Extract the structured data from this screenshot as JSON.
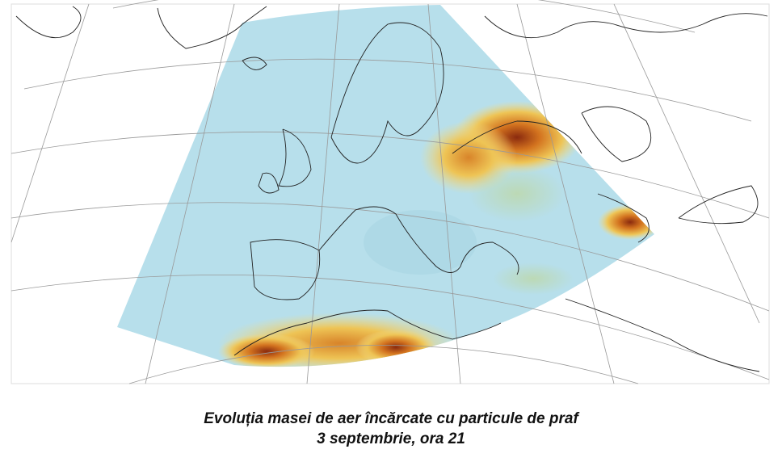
{
  "caption": {
    "line1": "Evoluția masei de aer încărcate cu particule de praf",
    "line2": "3 septembrie, ora 21"
  }
}
